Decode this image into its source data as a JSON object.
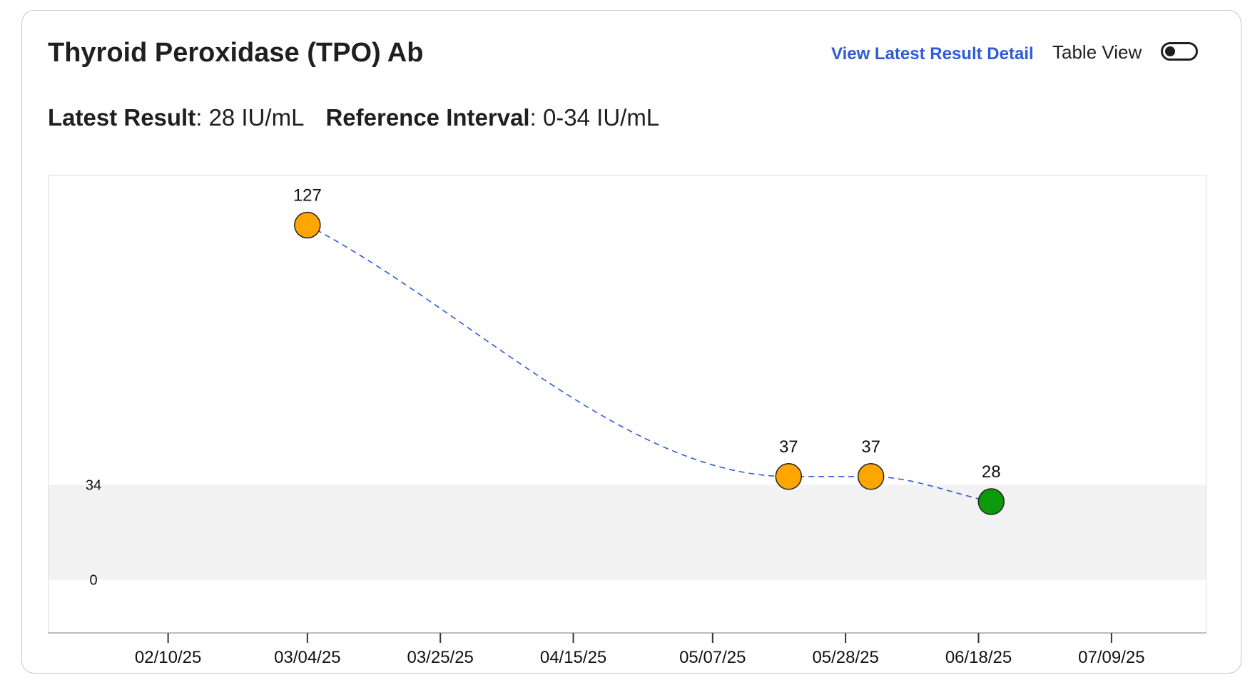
{
  "title": "Thyroid Peroxidase (TPO) Ab",
  "link_label": "View Latest Result Detail",
  "table_view": {
    "label": "Table View",
    "on": false
  },
  "summary": {
    "latest_label": "Latest Result",
    "latest_value": "28 IU/mL",
    "interval_label": "Reference Interval",
    "interval_value": "0-34 IU/mL"
  },
  "chart_data": {
    "type": "line",
    "x": [
      "2025-03-04",
      "2025-05-19",
      "2025-06-01",
      "2025-06-20"
    ],
    "values": [
      127,
      37,
      37,
      28
    ],
    "point_labels": [
      "127",
      "37",
      "37",
      "28"
    ],
    "point_status": [
      "abnormal",
      "abnormal",
      "abnormal",
      "normal"
    ],
    "xticks": [
      "2025-02-10",
      "2025-03-04",
      "2025-03-25",
      "2025-04-15",
      "2025-05-07",
      "2025-05-28",
      "2025-06-18",
      "2025-07-09"
    ],
    "xtick_labels": [
      "02/10/25",
      "03/04/25",
      "03/25/25",
      "04/15/25",
      "05/07/25",
      "05/28/25",
      "06/18/25",
      "07/09/25"
    ],
    "xlim": [
      "2025-01-22",
      "2025-07-24"
    ],
    "yticks": [
      0,
      34
    ],
    "ytick_labels": [
      "0",
      "34"
    ],
    "ylim": [
      -19,
      145
    ],
    "reference_band": [
      0,
      34
    ],
    "line_style": "dashed",
    "grid": false,
    "colors": {
      "line": "#2f5bd9",
      "abnormal": "#ffa500",
      "normal": "#0a9a0a",
      "band": "#f2f2f2",
      "axis": "#bdbdbd"
    }
  }
}
